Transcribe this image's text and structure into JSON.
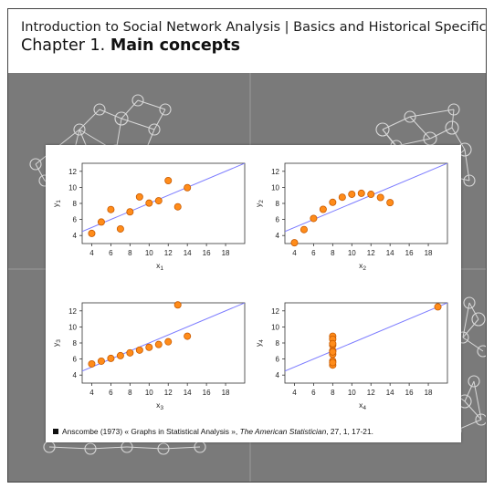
{
  "header": {
    "subtitle": "Introduction to Social Network Analysis | Basics and Historical Specificities",
    "chapter_prefix": "Chapter 1.",
    "chapter_title": "Main concepts"
  },
  "caption": {
    "pre": "Anscombe (1973) « Graphs in Statistical Analysis »,",
    "journal": "The American Statistician",
    "post": ", 27, 1, 17-21."
  },
  "colors": {
    "point_fill": "#ff8c1a",
    "point_stroke": "#c85a00",
    "fit_line": "#7b7bff",
    "background": "#7a7a7a",
    "network": "#d8d8d8"
  },
  "chart_data": [
    {
      "type": "scatter",
      "xlabel": "x1",
      "ylabel": "y1",
      "xlim": [
        3,
        20
      ],
      "ylim": [
        3,
        13
      ],
      "xticks": [
        "4",
        "6",
        "8",
        "10",
        "12",
        "14",
        "16",
        "18"
      ],
      "yticks": [
        "4",
        "6",
        "8",
        "10",
        "12"
      ],
      "x": [
        10,
        8,
        13,
        9,
        11,
        14,
        6,
        4,
        12,
        7,
        5
      ],
      "y": [
        8.04,
        6.95,
        7.58,
        8.81,
        8.33,
        9.96,
        7.24,
        4.26,
        10.84,
        4.82,
        5.68
      ],
      "fit": {
        "intercept": 3.0,
        "slope": 0.5
      }
    },
    {
      "type": "scatter",
      "xlabel": "x2",
      "ylabel": "y2",
      "xlim": [
        3,
        20
      ],
      "ylim": [
        3,
        13
      ],
      "xticks": [
        "4",
        "6",
        "8",
        "10",
        "12",
        "14",
        "16",
        "18"
      ],
      "yticks": [
        "4",
        "6",
        "8",
        "10",
        "12"
      ],
      "x": [
        10,
        8,
        13,
        9,
        11,
        14,
        6,
        4,
        12,
        7,
        5
      ],
      "y": [
        9.14,
        8.14,
        8.74,
        8.77,
        9.26,
        8.1,
        6.13,
        3.1,
        9.13,
        7.26,
        4.74
      ],
      "fit": {
        "intercept": 3.0,
        "slope": 0.5
      }
    },
    {
      "type": "scatter",
      "xlabel": "x3",
      "ylabel": "y3",
      "xlim": [
        3,
        20
      ],
      "ylim": [
        3,
        13
      ],
      "xticks": [
        "4",
        "6",
        "8",
        "10",
        "12",
        "14",
        "16",
        "18"
      ],
      "yticks": [
        "4",
        "6",
        "8",
        "10",
        "12"
      ],
      "x": [
        10,
        8,
        13,
        9,
        11,
        14,
        6,
        4,
        12,
        7,
        5
      ],
      "y": [
        7.46,
        6.77,
        12.74,
        7.11,
        7.81,
        8.84,
        6.08,
        5.39,
        8.15,
        6.42,
        5.73
      ],
      "fit": {
        "intercept": 3.0,
        "slope": 0.5
      }
    },
    {
      "type": "scatter",
      "xlabel": "x4",
      "ylabel": "y4",
      "xlim": [
        3,
        20
      ],
      "ylim": [
        3,
        13
      ],
      "xticks": [
        "4",
        "6",
        "8",
        "10",
        "12",
        "14",
        "16",
        "18"
      ],
      "yticks": [
        "4",
        "6",
        "8",
        "10",
        "12"
      ],
      "x": [
        8,
        8,
        8,
        8,
        8,
        8,
        8,
        19,
        8,
        8,
        8
      ],
      "y": [
        6.58,
        5.76,
        7.71,
        8.84,
        8.47,
        7.04,
        5.25,
        12.5,
        5.56,
        7.91,
        6.89
      ],
      "fit": {
        "intercept": 3.0,
        "slope": 0.5
      }
    }
  ]
}
